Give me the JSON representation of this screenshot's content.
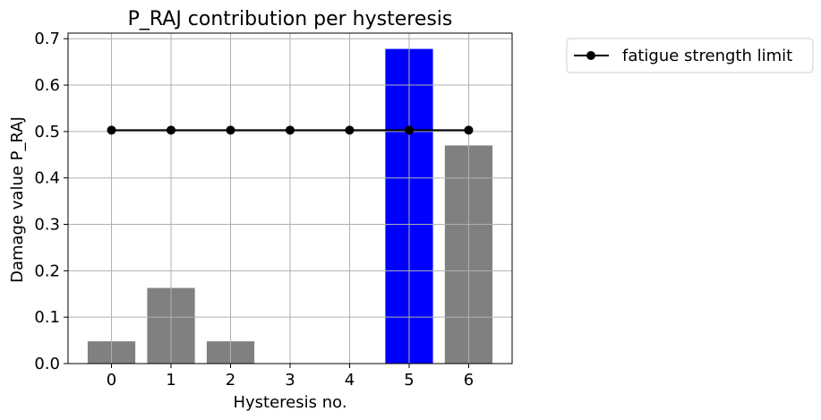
{
  "chart_data": {
    "type": "bar",
    "title": "P_RAJ contribution per hysteresis",
    "xlabel": "Hysteresis no.",
    "ylabel": "Damage value P_RAJ",
    "categories": [
      "0",
      "1",
      "2",
      "3",
      "4",
      "5",
      "6"
    ],
    "values": [
      0.048,
      0.163,
      0.048,
      0.0,
      0.0,
      0.678,
      0.47
    ],
    "bar_colors": [
      "#808080",
      "#808080",
      "#808080",
      "#808080",
      "#808080",
      "#0000ff",
      "#808080"
    ],
    "xlim": [
      -0.73,
      6.73
    ],
    "ylim": [
      0,
      0.712
    ],
    "yticks": [
      "0.0",
      "0.1",
      "0.2",
      "0.3",
      "0.4",
      "0.5",
      "0.6",
      "0.7"
    ],
    "ytick_values": [
      0,
      0.1,
      0.2,
      0.3,
      0.4,
      0.5,
      0.6,
      0.7
    ],
    "grid": true,
    "series": [
      {
        "name": "fatigue strength limit",
        "type": "line",
        "color": "#000000",
        "marker": "circle",
        "x": [
          0,
          1,
          2,
          3,
          4,
          5,
          6
        ],
        "values": [
          0.503,
          0.503,
          0.503,
          0.503,
          0.503,
          0.503,
          0.503
        ]
      }
    ],
    "legend": {
      "placement": "outside-right-top",
      "entries": [
        "fatigue strength limit"
      ]
    }
  }
}
